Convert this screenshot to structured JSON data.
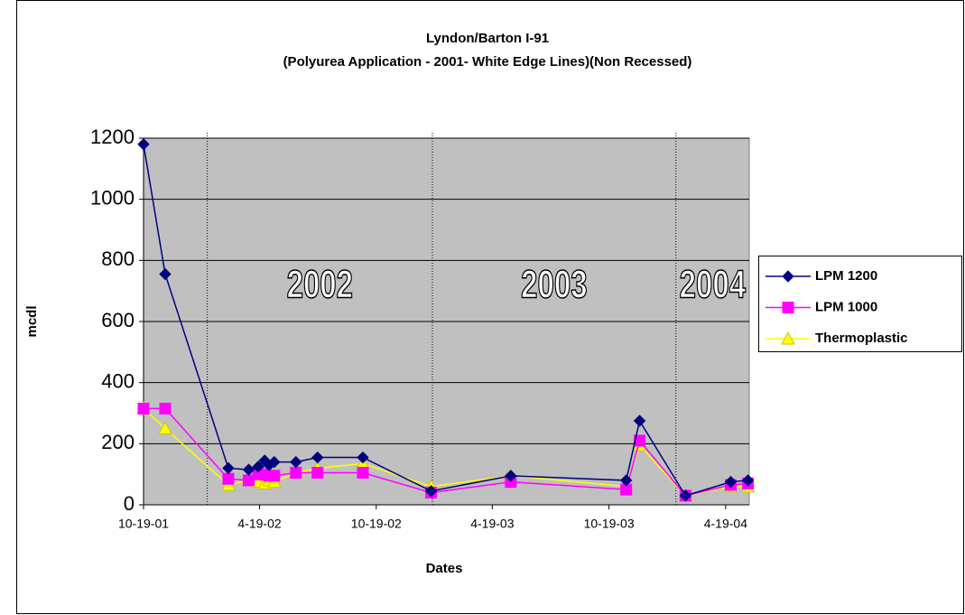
{
  "chart_data": {
    "type": "line",
    "title": [
      "Lyndon/Barton I-91",
      "(Polyurea Application - 2001- White Edge Lines)(Non Recessed)"
    ],
    "xlabel": "Dates",
    "ylabel": "mcdl",
    "x": [
      0,
      34,
      133,
      165,
      180,
      190,
      197,
      205,
      239,
      273,
      344,
      451,
      576,
      757,
      778,
      850,
      921,
      948
    ],
    "series": [
      {
        "name": "LPM 1200",
        "color": "#000080",
        "marker": "diamond",
        "values": [
          1180,
          755,
          120,
          115,
          125,
          145,
          130,
          140,
          140,
          155,
          155,
          45,
          95,
          80,
          275,
          30,
          75,
          80
        ]
      },
      {
        "name": "LPM 1000",
        "color": "#ff00ff",
        "marker": "square",
        "values": [
          315,
          315,
          85,
          80,
          100,
          100,
          95,
          95,
          105,
          105,
          105,
          40,
          75,
          50,
          210,
          30,
          65,
          70
        ]
      },
      {
        "name": "Thermoplastic",
        "color": "#ffff00",
        "marker": "triangle",
        "values": [
          315,
          250,
          65,
          80,
          75,
          70,
          80,
          75,
          105,
          120,
          135,
          60,
          95,
          60,
          195,
          30,
          60,
          60
        ]
      }
    ],
    "xlim": [
      0,
      950
    ],
    "xticks": [
      {
        "value": 0,
        "label": "10-19-01"
      },
      {
        "value": 182,
        "label": "4-19-02"
      },
      {
        "value": 365,
        "label": "10-19-02"
      },
      {
        "value": 547,
        "label": "4-19-03"
      },
      {
        "value": 730,
        "label": "10-19-03"
      },
      {
        "value": 913,
        "label": "4-19-04"
      }
    ],
    "ylim": [
      0,
      1200
    ],
    "yticks": [
      0,
      200,
      400,
      600,
      800,
      1000,
      1200
    ],
    "grid": true,
    "legend": "right",
    "year_dividers": [
      100,
      453,
      835
    ],
    "annotations": [
      "2002",
      "2003",
      "2004"
    ]
  }
}
